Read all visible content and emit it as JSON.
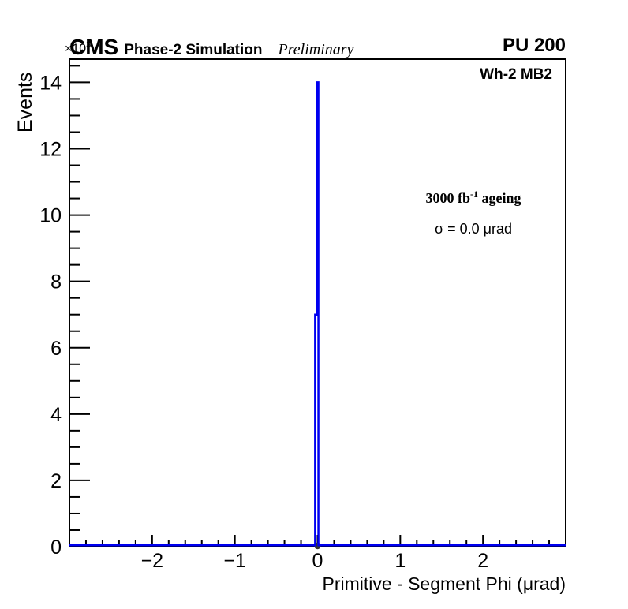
{
  "header": {
    "experiment": "CMS",
    "subtitle": "Phase-2 Simulation",
    "preliminary": "Preliminary",
    "pileup": "PU 200"
  },
  "plot_labels": {
    "chamber": "Wh-2 MB2",
    "annotation1_prefix": "3000 fb",
    "annotation1_sup": "-1",
    "annotation1_suffix": " ageing",
    "annotation2": "σ = 0.0 μrad"
  },
  "chart_data": {
    "type": "bar",
    "title": "",
    "xlabel": "Primitive - Segment Phi (μrad)",
    "ylabel": "Events",
    "y_multiplier_base": "×10",
    "y_multiplier_exp": "3",
    "xlim": [
      -3,
      3
    ],
    "ylim": [
      0,
      14.7
    ],
    "x_major_ticks": [
      -2,
      -1,
      0,
      1,
      2
    ],
    "x_tick_labels": [
      "−2",
      "−1",
      "0",
      "1",
      "2"
    ],
    "x_minor_step": 0.2,
    "y_major_ticks": [
      0,
      2,
      4,
      6,
      8,
      10,
      12,
      14
    ],
    "y_tick_labels": [
      "0",
      "2",
      "4",
      "6",
      "8",
      "10",
      "12",
      "14"
    ],
    "y_minor_step": 0.5,
    "grid": false,
    "legend": null,
    "bins": [
      {
        "x1": -0.03,
        "x2": -0.01,
        "height": 7
      },
      {
        "x1": -0.01,
        "x2": 0.01,
        "height": 14
      }
    ],
    "baseline_y": 0,
    "marker": {
      "x": 0,
      "y": 0
    },
    "colors": {
      "histogram": "#0000f0",
      "marker": "#333333",
      "axis": "#000000",
      "background": "#ffffff"
    }
  }
}
